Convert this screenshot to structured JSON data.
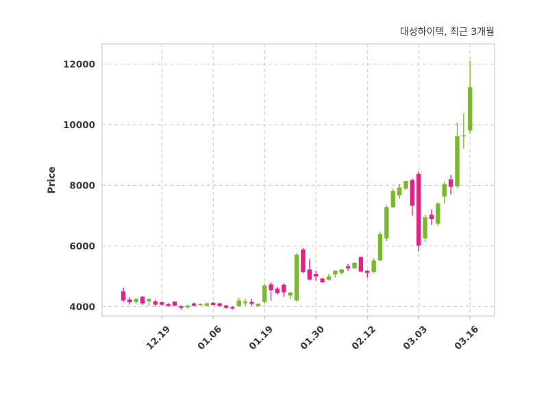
{
  "title": "대성하이텍, 최근 3개월",
  "y_axis": {
    "label": "Price",
    "ticks": [
      4000,
      6000,
      8000,
      10000,
      12000
    ]
  },
  "x_axis": {
    "tick_labels": [
      "12.19",
      "01.06",
      "01.19",
      "01.30",
      "02.12",
      "03.03",
      "03.16"
    ],
    "tick_indices": [
      6,
      14,
      22,
      30,
      38,
      46,
      54
    ]
  },
  "colors": {
    "up": "#7ab82c",
    "down": "#e02487",
    "grid": "#cccccc",
    "spine": "#d8d8d8",
    "tick_mark": "#b5b5b5",
    "text": "#3a3a3a"
  },
  "chart_data": {
    "type": "candlestick",
    "title": "대성하이텍, 최근 3개월",
    "ylabel": "Price",
    "ylim": [
      3690,
      12670
    ],
    "grid": true,
    "legend_position": "none",
    "x_tick_labels": [
      "12.19",
      "01.06",
      "01.19",
      "01.30",
      "02.12",
      "03.03",
      "03.16"
    ],
    "x_tick_indices": [
      6,
      14,
      22,
      30,
      38,
      46,
      54
    ],
    "ohlc_order": [
      "open",
      "high",
      "low",
      "close"
    ],
    "candles": [
      [
        4500,
        4620,
        4150,
        4200
      ],
      [
        4230,
        4300,
        4060,
        4140
      ],
      [
        4150,
        4270,
        4100,
        4250
      ],
      [
        4320,
        4350,
        4050,
        4100
      ],
      [
        4170,
        4270,
        4020,
        4250
      ],
      [
        4170,
        4220,
        4000,
        4060
      ],
      [
        4140,
        4170,
        4030,
        4060
      ],
      [
        4080,
        4110,
        3990,
        4020
      ],
      [
        4160,
        4180,
        4000,
        4030
      ],
      [
        4010,
        4040,
        3900,
        3960
      ],
      [
        3970,
        4060,
        3940,
        4030
      ],
      [
        4100,
        4130,
        4000,
        4030
      ],
      [
        4050,
        4110,
        4020,
        4080
      ],
      [
        4030,
        4120,
        4010,
        4100
      ],
      [
        4120,
        4150,
        4040,
        4050
      ],
      [
        4100,
        4120,
        4000,
        4020
      ],
      [
        4030,
        4060,
        3930,
        3960
      ],
      [
        3980,
        4010,
        3900,
        3930
      ],
      [
        4010,
        4280,
        4000,
        4200
      ],
      [
        4110,
        4260,
        4030,
        4160
      ],
      [
        4150,
        4250,
        4030,
        4090
      ],
      [
        4020,
        4100,
        4000,
        4090
      ],
      [
        4150,
        4750,
        4100,
        4690
      ],
      [
        4730,
        4790,
        4200,
        4540
      ],
      [
        4590,
        4650,
        4400,
        4440
      ],
      [
        4720,
        4760,
        4320,
        4470
      ],
      [
        4360,
        4480,
        4240,
        4460
      ],
      [
        4200,
        5750,
        4150,
        5710
      ],
      [
        5880,
        5930,
        5100,
        5140
      ],
      [
        5220,
        5560,
        4860,
        4890
      ],
      [
        5070,
        5180,
        4850,
        4990
      ],
      [
        4920,
        4950,
        4780,
        4800
      ],
      [
        4880,
        5070,
        4860,
        4990
      ],
      [
        5060,
        5200,
        4950,
        5180
      ],
      [
        5110,
        5240,
        5050,
        5220
      ],
      [
        5330,
        5410,
        5180,
        5260
      ],
      [
        5260,
        5460,
        5250,
        5440
      ],
      [
        5630,
        5650,
        5140,
        5150
      ],
      [
        5180,
        5200,
        4950,
        5110
      ],
      [
        5140,
        5590,
        5100,
        5520
      ],
      [
        5520,
        6460,
        5500,
        6390
      ],
      [
        6250,
        7340,
        6150,
        7280
      ],
      [
        7280,
        7890,
        7250,
        7810
      ],
      [
        7670,
        8040,
        7550,
        7930
      ],
      [
        7890,
        8150,
        7850,
        8140
      ],
      [
        8170,
        8230,
        7000,
        7330
      ],
      [
        8380,
        8460,
        5820,
        6010
      ],
      [
        6250,
        7030,
        6120,
        6950
      ],
      [
        7030,
        7200,
        6700,
        6880
      ],
      [
        6730,
        7450,
        6650,
        7400
      ],
      [
        7630,
        8120,
        7400,
        8040
      ],
      [
        8200,
        8340,
        7700,
        7950
      ],
      [
        7970,
        10080,
        7900,
        9620
      ],
      [
        9630,
        10380,
        9210,
        9650
      ],
      [
        9810,
        12110,
        9700,
        11240
      ]
    ]
  }
}
